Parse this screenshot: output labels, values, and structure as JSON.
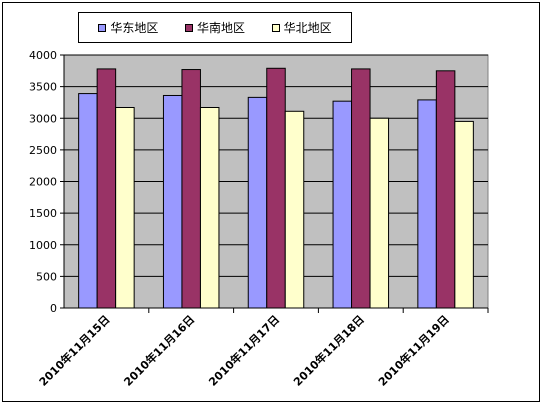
{
  "chart_data": {
    "type": "bar",
    "categories": [
      "2010年11月15日",
      "2010年11月16日",
      "2010年11月17日",
      "2010年11月18日",
      "2010年11月19日"
    ],
    "series": [
      {
        "name": "华东地区",
        "color": "#9999ff",
        "values": [
          3390,
          3360,
          3330,
          3270,
          3290
        ]
      },
      {
        "name": "华南地区",
        "color": "#993366",
        "values": [
          3780,
          3770,
          3790,
          3780,
          3750
        ]
      },
      {
        "name": "华北地区",
        "color": "#ffffcc",
        "values": [
          3170,
          3170,
          3110,
          3000,
          2950
        ]
      }
    ],
    "ylim": [
      0,
      4000
    ],
    "yticks": [
      0,
      500,
      1000,
      1500,
      2000,
      2500,
      3000,
      3500,
      4000
    ],
    "grid": true,
    "plot_background": "#c0c0c0",
    "legend_position": "top"
  }
}
